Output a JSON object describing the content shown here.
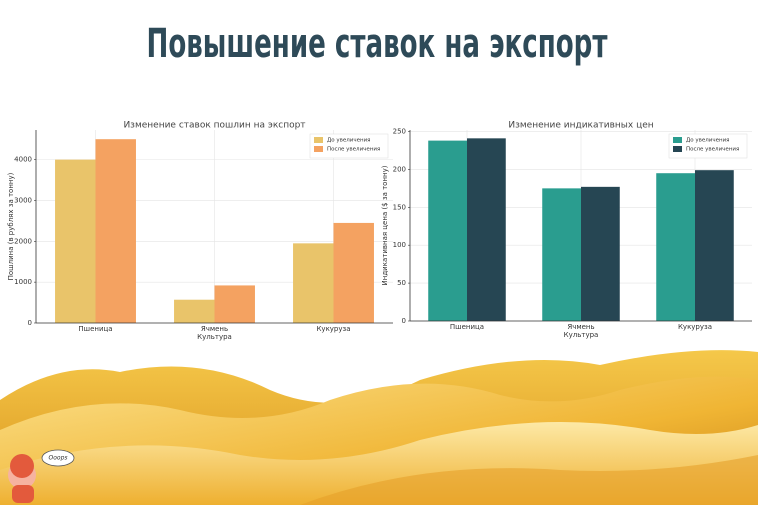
{
  "title": "Повышение ставок на экспорт",
  "sticker": "Ooops",
  "chart_data": [
    {
      "type": "bar",
      "title": "Изменение ставок пошлин на экспорт",
      "categories": [
        "Пшеница",
        "Ячмень",
        "Кукуруза"
      ],
      "series": [
        {
          "name": "До увеличения",
          "color": "#e9c46a",
          "values": [
            4000,
            570,
            1950
          ]
        },
        {
          "name": "После увеличения",
          "color": "#f4a261",
          "values": [
            4500,
            920,
            2450
          ]
        }
      ],
      "xlabel": "Культура",
      "ylabel": "Пошлина (в рублях за тонну)",
      "ylim": [
        0,
        4725
      ],
      "yticks": [
        0,
        1000,
        2000,
        3000,
        4000
      ],
      "grid": true,
      "legend": "upper right"
    },
    {
      "type": "bar",
      "title": "Изменение индикативных цен",
      "categories": [
        "Пшеница",
        "Ячмень",
        "Кукуруза"
      ],
      "series": [
        {
          "name": "До увеличения",
          "color": "#2a9d8f",
          "values": [
            238,
            175,
            195
          ]
        },
        {
          "name": "После увеличения",
          "color": "#264653",
          "values": [
            241,
            177,
            199
          ]
        }
      ],
      "xlabel": "Культура",
      "ylabel": "Индикативная цена ($ за тонну)",
      "ylim": [
        0,
        252
      ],
      "yticks": [
        0,
        50,
        100,
        150,
        200,
        250
      ],
      "grid": true,
      "legend": "upper right"
    }
  ]
}
